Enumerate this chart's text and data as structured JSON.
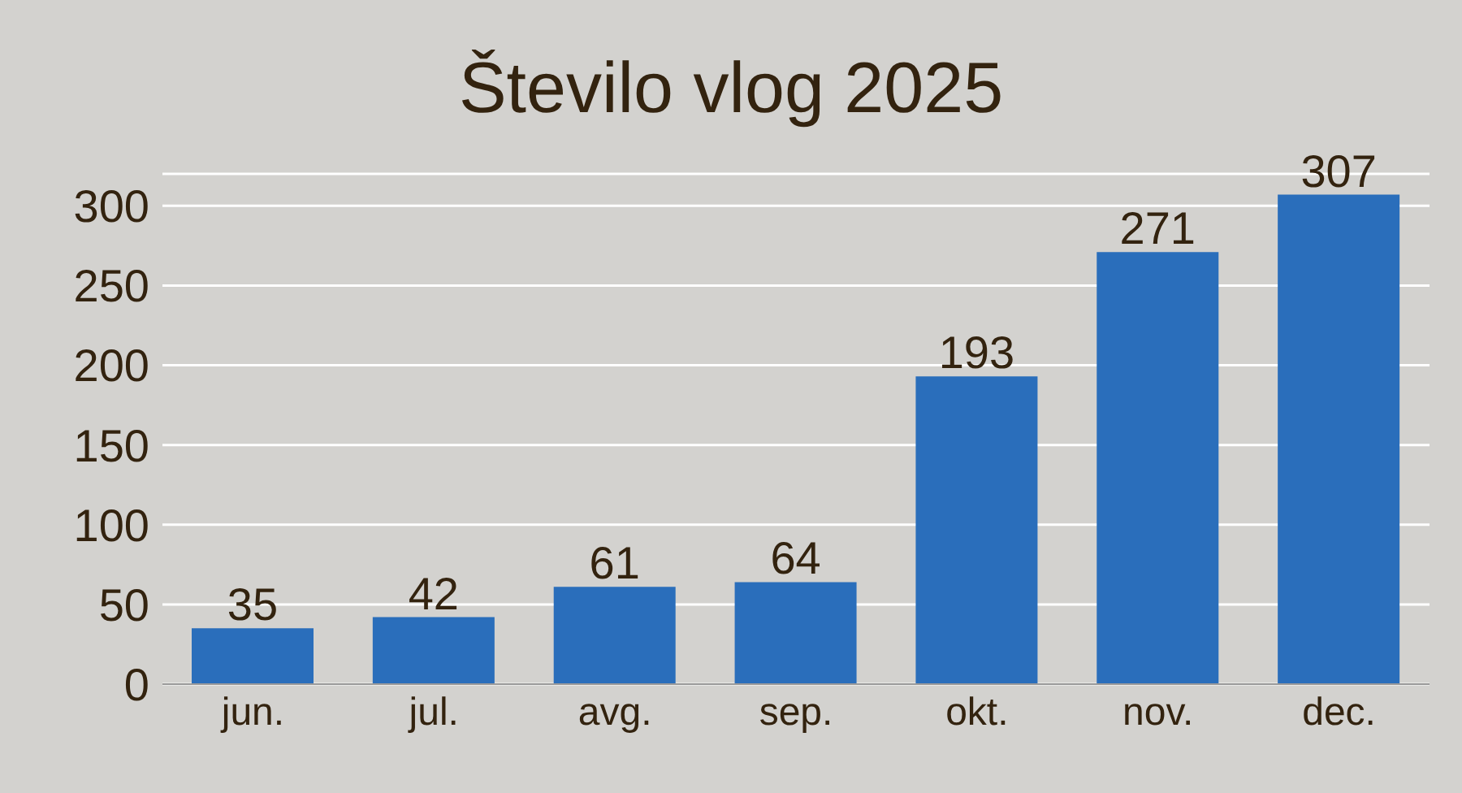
{
  "chart_data": {
    "type": "bar",
    "title": "Število vlog 2025",
    "categories": [
      "jun.",
      "jul.",
      "avg.",
      "sep.",
      "okt.",
      "nov.",
      "dec."
    ],
    "values": [
      35,
      42,
      61,
      64,
      193,
      271,
      307
    ],
    "color": "#2a6ebb",
    "ylim": [
      0,
      320
    ],
    "yticks": [
      0,
      50,
      100,
      150,
      200,
      250,
      300
    ],
    "grid": "y",
    "data_labels": true
  }
}
